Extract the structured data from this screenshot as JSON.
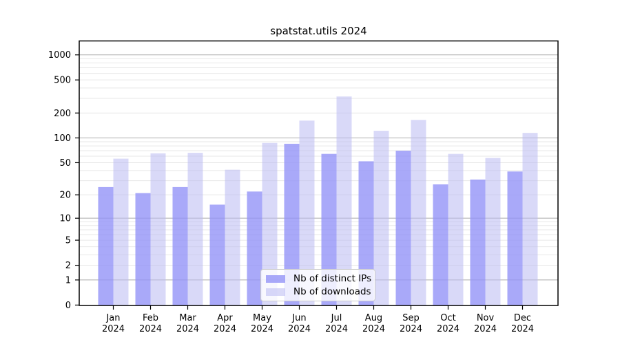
{
  "chart_data": {
    "type": "bar",
    "title": "spatstat.utils 2024",
    "categories": [
      "Jan",
      "Feb",
      "Mar",
      "Apr",
      "May",
      "Jun",
      "Jul",
      "Aug",
      "Sep",
      "Oct",
      "Nov",
      "Dec"
    ],
    "x_year": "2024",
    "series": [
      {
        "name": "Nb of distinct IPs",
        "key": "distinct-ips",
        "color": "rgba(148,148,247,0.8)",
        "values": [
          25,
          21,
          25,
          15,
          22,
          85,
          64,
          52,
          70,
          27,
          31,
          39
        ]
      },
      {
        "name": "Nb of downloads",
        "key": "downloads",
        "color": "rgba(185,185,243,0.55)",
        "values": [
          56,
          65,
          66,
          41,
          87,
          162,
          316,
          122,
          165,
          64,
          57,
          115
        ]
      }
    ],
    "y_scale": "log1p",
    "y_ticks": [
      0,
      1,
      2,
      5,
      10,
      20,
      50,
      100,
      200,
      500,
      1000
    ],
    "ylim": [
      0,
      1480
    ],
    "grid": {
      "major_lines": [
        1,
        10,
        100,
        1000
      ],
      "major_color": "#ababab",
      "minor_color": "#e7e7e7"
    },
    "spine_color": "#000000",
    "legend_position": "lower center"
  }
}
